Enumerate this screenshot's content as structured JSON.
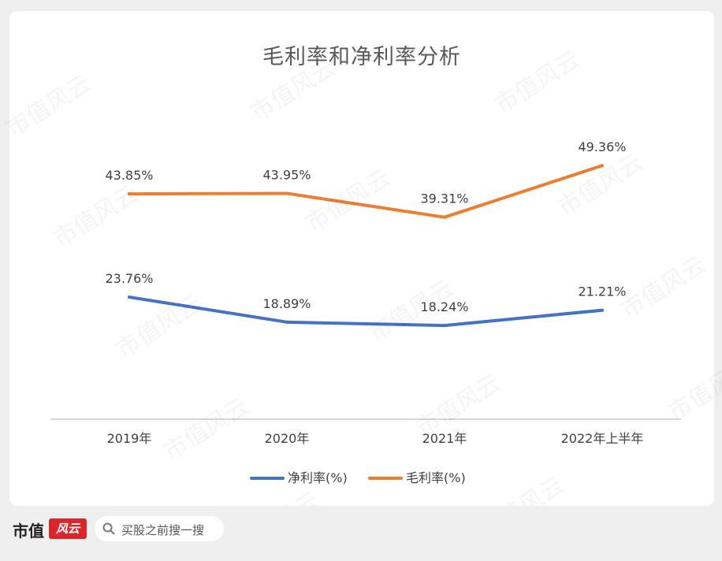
{
  "chart_data": {
    "type": "line",
    "title": "毛利率和净利率分析",
    "categories": [
      "2019年",
      "2020年",
      "2021年",
      "2022年上半年"
    ],
    "series": [
      {
        "name": "净利率(%)",
        "color": "#4472c4",
        "values": [
          23.76,
          18.89,
          18.24,
          21.21
        ],
        "labels": [
          "23.76%",
          "18.89%",
          "18.24%",
          "21.21%"
        ]
      },
      {
        "name": "毛利率(%)",
        "color": "#ed7d31",
        "values": [
          43.85,
          43.95,
          39.31,
          49.36
        ],
        "labels": [
          "43.85%",
          "43.95%",
          "39.31%",
          "49.36%"
        ]
      }
    ],
    "ylim": [
      0,
      60
    ],
    "grid": false,
    "legend": "bottom"
  },
  "footer": {
    "brand": "市值",
    "logo_text": "风云",
    "search_placeholder": "买股之前搜一搜",
    "search_icon": "search-icon"
  },
  "watermark": "市值风云"
}
